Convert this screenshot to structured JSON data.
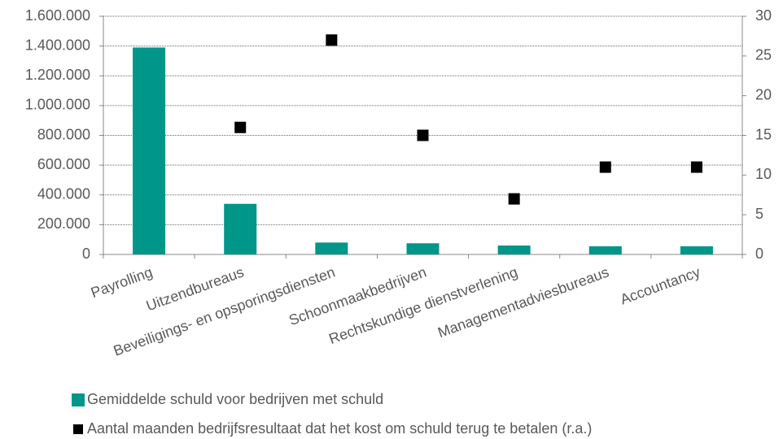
{
  "chart_data": {
    "type": "bar",
    "categories": [
      "Payrolling",
      "Uitzendbureaus",
      "Beveiligings- en opsporingsdiensten",
      "Schoonmaakbedrijven",
      "Rechtskundige dienstverlening",
      "Managementadviesbureaus",
      "Accountancy"
    ],
    "series": [
      {
        "name": "Gemiddelde schuld voor bedrijven met schuld",
        "type": "bar",
        "color": "#00968a",
        "values": [
          1390000,
          340000,
          80000,
          75000,
          60000,
          55000,
          55000
        ]
      },
      {
        "name": "Aantal maanden bedrijfsresultaat dat het kost om schuld terug te betalen (r.a.)",
        "type": "scatter",
        "axis": "y2",
        "color": "#000000",
        "values": [
          null,
          16,
          27,
          15,
          7,
          11,
          11
        ]
      }
    ],
    "ylim": [
      0,
      1600000
    ],
    "yticks": [
      0,
      {
        "value": 200000,
        "label": "200.000"
      },
      {
        "value": 400000,
        "label": "400.000"
      },
      {
        "value": 600000,
        "label": "600.000"
      },
      {
        "value": 800000,
        "label": "800.000"
      },
      {
        "value": 1000000,
        "label": "1.000.000"
      },
      {
        "value": 1200000,
        "label": "1.200.000"
      },
      {
        "value": 1400000,
        "label": "1.400.000"
      },
      {
        "value": 1600000,
        "label": "1.600.000"
      }
    ],
    "y2lim": [
      0,
      30
    ],
    "y2ticks": [
      0,
      5,
      10,
      15,
      20,
      25,
      30
    ],
    "grid": true
  }
}
